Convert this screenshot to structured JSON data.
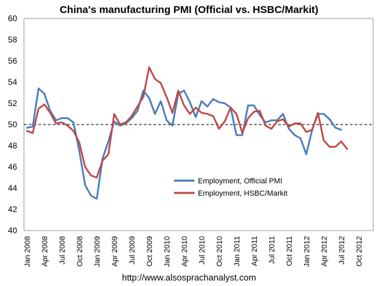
{
  "chart_data": {
    "type": "line",
    "title": "China's manufacturing PMI (Official vs. HSBC/Markit)",
    "xlabel": "",
    "ylabel": "",
    "ylim": [
      40,
      60
    ],
    "yticks": [
      "40",
      "42",
      "44",
      "46",
      "48",
      "50",
      "52",
      "54",
      "56",
      "58",
      "60"
    ],
    "x_tick_labels": [
      "Jan 2008",
      "Apr 2008",
      "Jul 2008",
      "Oct 2008",
      "Jan 2009",
      "Apr 2009",
      "Jul 2009",
      "Oct 2009",
      "Jan 2010",
      "Apr 2010",
      "Jul 2010",
      "Oct 2010",
      "Jan 2011",
      "Apr 2011",
      "Jul 2011",
      "Oct 2011",
      "Jan 2012",
      "Apr 2012",
      "Jul 2012",
      "Oct 2012"
    ],
    "x_start": "Jan 2008",
    "x_frequency": "monthly",
    "reference_line": {
      "y": 50,
      "style": "dashed",
      "color": "#000000"
    },
    "grid": false,
    "legend_position": "center-right",
    "series": [
      {
        "name": "Employment, Official PMI",
        "color": "#4a7ebb",
        "values": [
          49.7,
          49.8,
          53.4,
          52.9,
          51.3,
          50.4,
          50.6,
          50.6,
          50.2,
          47.5,
          44.3,
          43.3,
          43.0,
          46.8,
          48.4,
          50.3,
          49.9,
          50.1,
          50.6,
          51.3,
          53.2,
          52.5,
          51.0,
          52.2,
          50.4,
          49.9,
          52.9,
          53.2,
          52.1,
          50.7,
          52.2,
          51.7,
          52.4,
          52.1,
          52.0,
          51.6,
          49.0,
          49.0,
          51.8,
          51.8,
          50.9,
          50.2,
          50.4,
          50.4,
          51.0,
          49.6,
          49.0,
          48.7,
          47.2,
          49.5,
          51.0,
          51.0,
          50.5,
          49.7,
          49.5
        ]
      },
      {
        "name": "Employment, HSBC/Markit",
        "color": "#be4b48",
        "values": [
          49.4,
          49.2,
          51.5,
          51.9,
          51.1,
          50.1,
          50.2,
          49.9,
          49.4,
          48.3,
          46.0,
          45.2,
          45.0,
          46.6,
          47.2,
          51.0,
          50.0,
          50.2,
          50.8,
          51.7,
          52.6,
          55.4,
          54.3,
          53.9,
          52.6,
          51.1,
          53.2,
          51.8,
          51.0,
          51.6,
          51.1,
          51.0,
          50.8,
          49.6,
          50.3,
          51.6,
          51.0,
          49.2,
          50.6,
          51.2,
          51.3,
          49.9,
          49.6,
          50.3,
          50.5,
          49.8,
          50.1,
          50.1,
          49.3,
          49.5,
          51.1,
          48.5,
          47.9,
          47.9,
          48.4,
          47.7
        ]
      }
    ]
  },
  "footer_url": "http://www.alsosprachanalyst.com"
}
